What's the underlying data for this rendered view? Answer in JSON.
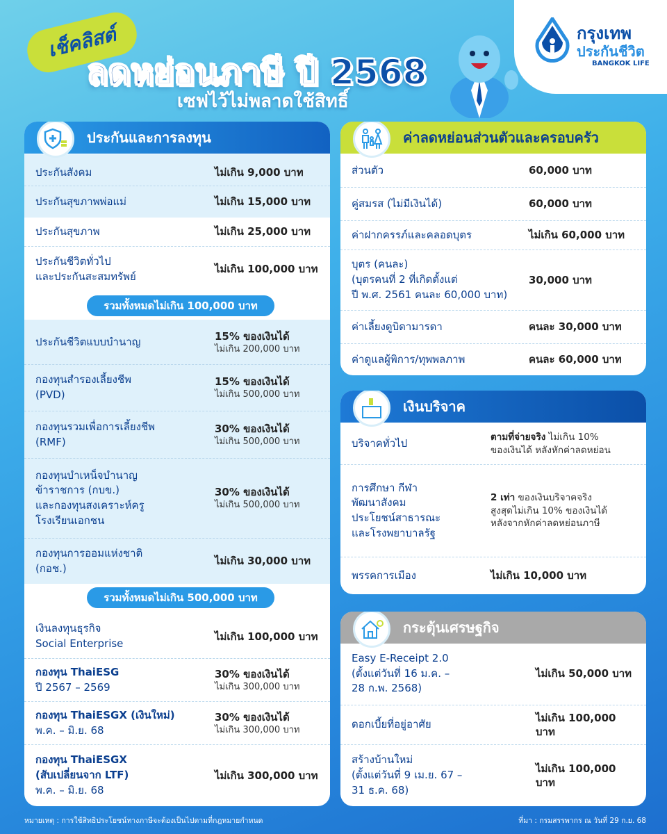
{
  "header": {
    "checklist": "เช็คลิสต์",
    "title": "ลดหย่อนภาษี ปี 2568",
    "subtitle": "เซฟไว้ไม่พลาดใช้สิทธิ์"
  },
  "logo": {
    "th_line1": "กรุงเทพ",
    "th_line2": "ประกันชีวิต",
    "en": "BANGKOK LIFE"
  },
  "colors": {
    "primary": "#0b4fa8",
    "accent_blue": "#2a9ae6",
    "lime": "#c9df3a",
    "grey_header": "#a9a9a9",
    "row_tint": "#dff1fb"
  },
  "insurance": {
    "title": "ประกันและการลงทุน",
    "icon": "shield-coins-icon",
    "group1": [
      {
        "label": "ประกันสังคม",
        "value": "ไม่เกิน 9,000 บาท"
      },
      {
        "label": "ประกันสุขภาพพ่อแม่",
        "value": "ไม่เกิน 15,000 บาท"
      },
      {
        "label": "ประกันสุขภาพ",
        "value": "ไม่เกิน 25,000 บาท"
      },
      {
        "label": "ประกันชีวิตทั่วไป\nและประกันสะสมทรัพย์",
        "value": "ไม่เกิน 100,000 บาท"
      }
    ],
    "total1": "รวมทั้งหมดไม่เกิน 100,000 บาท",
    "group2": [
      {
        "label": "ประกันชีวิตแบบบำนาญ",
        "value": "15% ของเงินได้",
        "note": "ไม่เกิน 200,000 บาท"
      },
      {
        "label": "กองทุนสำรองเลี้ยงชีพ\n(PVD)",
        "value": "15% ของเงินได้",
        "note": "ไม่เกิน 500,000 บาท"
      },
      {
        "label": "กองทุนรวมเพื่อการเลี้ยงชีพ\n(RMF)",
        "value": "30% ของเงินได้",
        "note": "ไม่เกิน 500,000 บาท"
      },
      {
        "label": "กองทุนบำเหน็จบำนาญ\nข้าราชการ (กบข.)\nและกองทุนสงเคราะห์ครู\nโรงเรียนเอกชน",
        "value": "30% ของเงินได้",
        "note": "ไม่เกิน 500,000 บาท"
      },
      {
        "label": "กองทุนการออมแห่งชาติ\n(กอช.)",
        "value": "ไม่เกิน 30,000 บาท"
      }
    ],
    "total2": "รวมทั้งหมดไม่เกิน 500,000 บาท",
    "group3": [
      {
        "label": "เงินลงทุนธุรกิจ\nSocial Enterprise",
        "value": "ไม่เกิน 100,000 บาท"
      },
      {
        "label_bold": "กองทุน ThaiESG",
        "label_sub": "ปี 2567 – 2569",
        "value": "30% ของเงินได้",
        "note": "ไม่เกิน 300,000 บาท"
      },
      {
        "label_bold": "กองทุน ThaiESGX (เงินใหม่)",
        "label_sub": "พ.ค. – มิ.ย. 68",
        "value": "30% ของเงินได้",
        "note": "ไม่เกิน 300,000 บาท"
      },
      {
        "label_bold": "กองทุน ThaiESGX\n(สับเปลี่ยนจาก LTF)",
        "label_sub": "พ.ค. – มิ.ย. 68",
        "value": "ไม่เกิน 300,000 บาท"
      }
    ]
  },
  "personal": {
    "title": "ค่าลดหย่อนส่วนตัวและครอบครัว",
    "icon": "family-icon",
    "rows": [
      {
        "label": "ส่วนตัว",
        "value": "60,000 บาท"
      },
      {
        "label": "คู่สมรส (ไม่มีเงินได้)",
        "value": "60,000 บาท"
      },
      {
        "label": "ค่าฝากครรภ์และคลอดบุตร",
        "value": "ไม่เกิน 60,000 บาท"
      },
      {
        "label": "บุตร (คนละ)\n(บุตรคนที่ 2 ที่เกิดตั้งแต่\nปี พ.ศ. 2561 คนละ 60,000 บาท)",
        "value": "30,000 บาท"
      },
      {
        "label": "ค่าเลี้ยงดูบิดามารดา",
        "value": "คนละ 30,000 บาท"
      },
      {
        "label": "ค่าดูแลผู้พิการ/ทุพพลภาพ",
        "value": "คนละ 60,000 บาท"
      }
    ]
  },
  "donation": {
    "title": "เงินบริจาค",
    "icon": "donation-box-icon",
    "rows": [
      {
        "label": "บริจาคทั่วไป",
        "value_bold": "ตามที่จ่ายจริง",
        "value_rest": " ไม่เกิน 10%\nของเงินได้ หลังหักค่าลดหย่อน"
      },
      {
        "label": "การศึกษา กีฬา\nพัฒนาสังคม\nประโยชน์สาธารณะ\nและโรงพยาบาลรัฐ",
        "value_bold": "2 เท่า",
        "value_rest": " ของเงินบริจาคจริง\nสูงสุดไม่เกิน 10% ของเงินได้\nหลังจากหักค่าลดหย่อนภาษี"
      },
      {
        "label": "พรรคการเมือง",
        "value": "ไม่เกิน 10,000 บาท"
      }
    ]
  },
  "stimulus": {
    "title": "กระตุ้นเศรษฐกิจ",
    "icon": "house-icon",
    "rows": [
      {
        "label": "Easy E-Receipt 2.0\n(ตั้งแต่วันที่ 16 ม.ค. –\n28 ก.พ. 2568)",
        "value": "ไม่เกิน 50,000 บาท"
      },
      {
        "label": "ดอกเบี้ยที่อยู่อาศัย",
        "value": "ไม่เกิน 100,000 บาท"
      },
      {
        "label": "สร้างบ้านใหม่\n(ตั้งแต่วันที่ 9 เม.ย. 67 –\n31 ธ.ค. 68)",
        "value": "ไม่เกิน 100,000 บาท"
      }
    ]
  },
  "footer": {
    "note": "หมายเหตุ : การใช้สิทธิประโยชน์ทางภาษีจะต้องเป็นไปตามที่กฎหมายกำหนด",
    "source": "ที่มา : กรมสรรพากร ณ วันที่ 29 ก.ย. 68"
  }
}
